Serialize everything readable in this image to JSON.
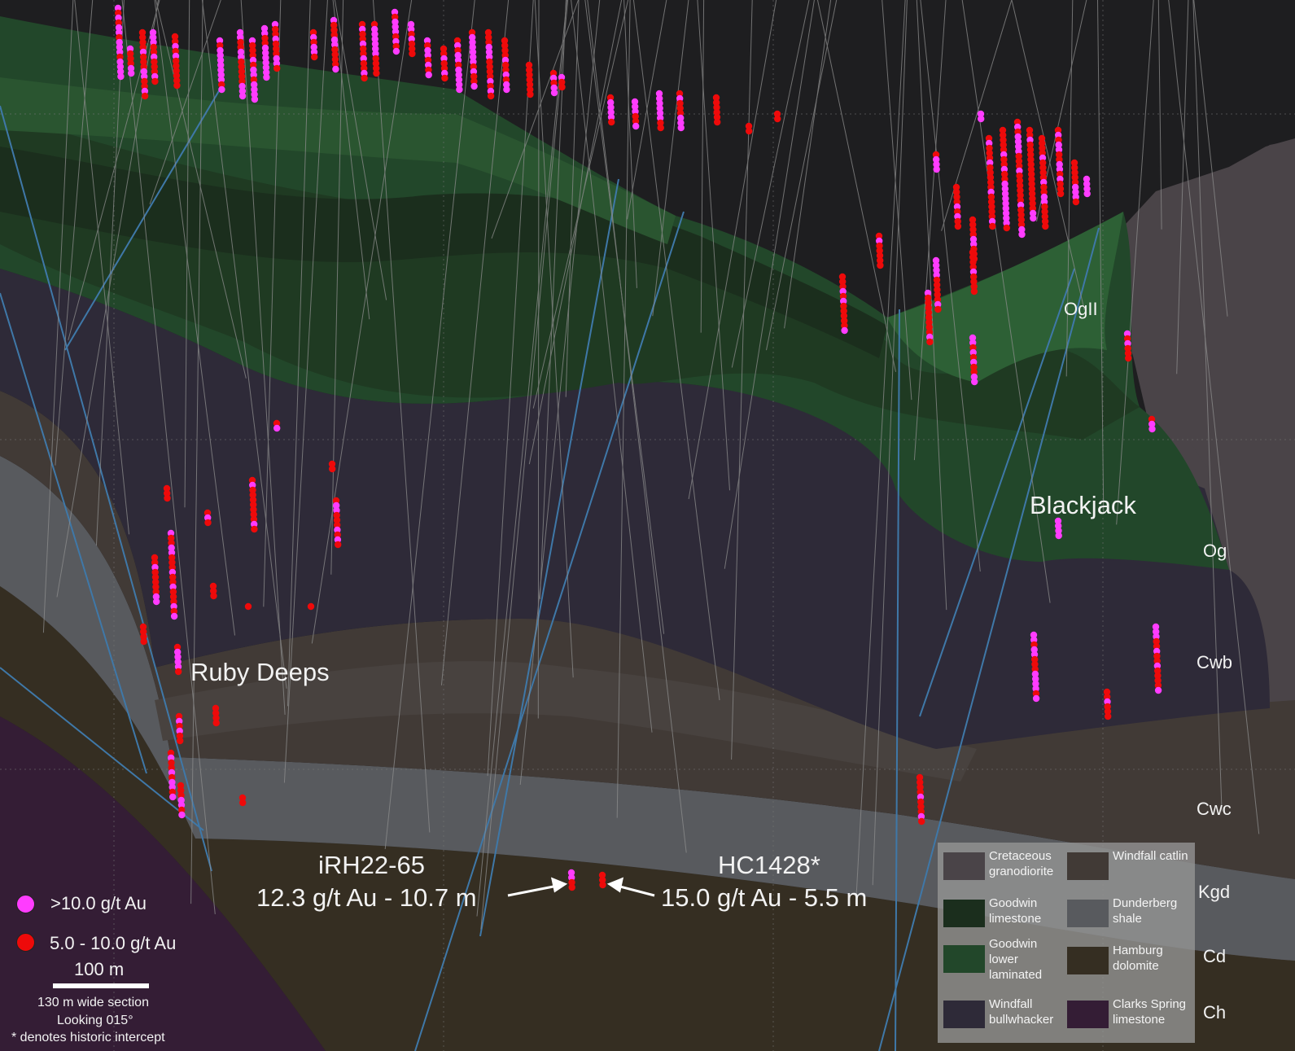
{
  "colors": {
    "background": "#1e1e20",
    "cretaceous_granodiorite": "#4a4448",
    "goodwin_limestone": "#1b2e1d",
    "goodwin_lower_laminated": "#22472a",
    "windfall_bullwhacker": "#2e2a38",
    "windfall_catlin": "#413a36",
    "dunderberg_shale": "#585a5e",
    "hamburg_dolomite": "#352e22",
    "clarks_spring_limestone": "#341d35",
    "high_grade": "#ff3cff",
    "mid_grade": "#ee0a0a",
    "fault": "#3f78a8",
    "drill_trace": "#8e8e8e"
  },
  "unit_labels": [
    "OgII",
    "Og",
    "Cwb",
    "Cwc",
    "Kgd",
    "Cd",
    "Ch"
  ],
  "zones": {
    "ruby_deeps": "Ruby Deeps",
    "blackjack": "Blackjack"
  },
  "drillholes": [
    {
      "name": "iRH22-65",
      "intercept": "12.3 g/t Au - 10.7 m"
    },
    {
      "name": "HC1428*",
      "intercept": "15.0 g/t Au - 5.5 m"
    }
  ],
  "legend": [
    {
      "label": "Cretaceous granodiorite",
      "color": "#4a4448"
    },
    {
      "label": "Windfall catlin",
      "color": "#413a36"
    },
    {
      "label": "Goodwin limestone",
      "color": "#1b2e1d"
    },
    {
      "label": "Dunderberg shale",
      "color": "#585a5e"
    },
    {
      "label": "Goodwin lower laminated",
      "color": "#22472a"
    },
    {
      "label": "Hamburg dolomite",
      "color": "#352e22"
    },
    {
      "label": "Windfall bullwhacker",
      "color": "#2e2a38"
    },
    {
      "label": "Clarks Spring limestone",
      "color": "#341d35"
    }
  ],
  "grade_legend": [
    {
      "label": ">10.0 g/t Au",
      "color": "#ff3cff"
    },
    {
      "label": "5.0 - 10.0 g/t Au",
      "color": "#ee0a0a"
    }
  ],
  "scale": {
    "label": "100 m",
    "section_width": "130 m wide section",
    "looking": "Looking 015°",
    "note": "* denotes historic intercept"
  }
}
